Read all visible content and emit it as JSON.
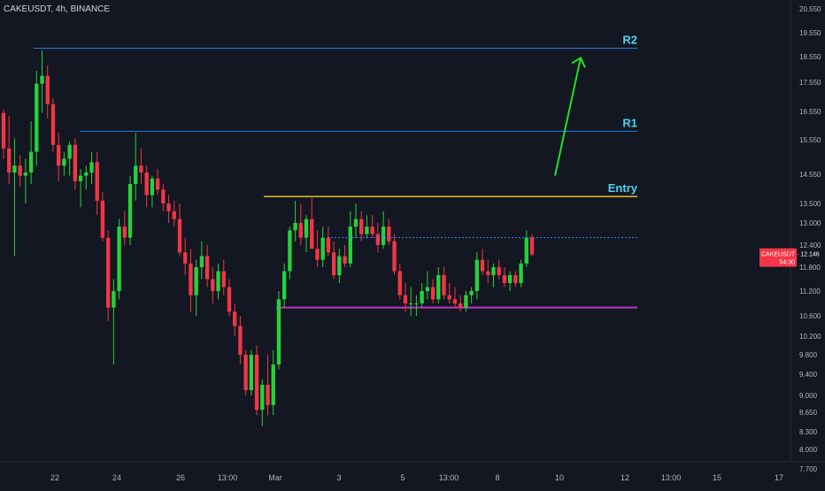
{
  "header": {
    "symbol": "CAKEUSDT",
    "interval": "4h",
    "exchange": "BINANCE"
  },
  "price_tag": {
    "symbol": "CAKEUSDT",
    "price": "12.146",
    "countdown": "54:30",
    "color": "#f23645"
  },
  "colors": {
    "background": "#131722",
    "up": "#26d23a",
    "down": "#f23645",
    "axis_text": "#b2b5be",
    "r_line": "#2e7bd6",
    "entry_line": "#e6c229",
    "support_line": "#c232c2",
    "arrow": "#22e024",
    "label_cyan": "#4fd4f0"
  },
  "chart_data": {
    "type": "candlestick",
    "y_ticks": [
      "20.550",
      "19.550",
      "18.550",
      "17.550",
      "16.550",
      "15.550",
      "14.550",
      "13.500",
      "13.000",
      "12.400",
      "11.800",
      "11.200",
      "10.600",
      "10.200",
      "9.800",
      "9.400",
      "9.000",
      "8.650",
      "8.300",
      "8.000",
      "7.700"
    ],
    "x_ticks": [
      "22",
      "24",
      "26",
      "13:00",
      "Mar",
      "3",
      "5",
      "13:00",
      "8",
      "10",
      "12",
      "13:00",
      "15",
      "17"
    ],
    "current_price": 12.146,
    "levels": [
      {
        "label": "R2",
        "value": 18.9
      },
      {
        "label": "R1",
        "value": 15.85
      },
      {
        "label": "Entry",
        "value": 13.75
      },
      {
        "label": "",
        "value": 10.8
      }
    ],
    "arrow": {
      "from_price": 14.5,
      "to_price": 18.5
    },
    "candles": [
      [
        16.5,
        16.6,
        15.0,
        15.3
      ],
      [
        15.3,
        16.4,
        14.2,
        14.6
      ],
      [
        14.6,
        15.6,
        12.1,
        14.8
      ],
      [
        14.8,
        15.1,
        14.1,
        14.5
      ],
      [
        14.5,
        15.0,
        13.5,
        14.6
      ],
      [
        14.6,
        16.2,
        14.2,
        15.2
      ],
      [
        15.2,
        18.0,
        14.8,
        17.5
      ],
      [
        17.5,
        18.8,
        16.5,
        17.8
      ],
      [
        17.8,
        18.2,
        16.3,
        16.8
      ],
      [
        16.8,
        17.0,
        15.2,
        15.4
      ],
      [
        15.4,
        15.8,
        14.3,
        14.8
      ],
      [
        14.8,
        15.2,
        14.5,
        15.0
      ],
      [
        15.0,
        15.5,
        14.5,
        15.4
      ],
      [
        15.4,
        15.6,
        14.0,
        14.3
      ],
      [
        14.3,
        14.7,
        13.4,
        14.5
      ],
      [
        14.5,
        14.8,
        14.0,
        14.6
      ],
      [
        14.6,
        15.2,
        14.2,
        14.9
      ],
      [
        14.9,
        15.2,
        13.2,
        13.6
      ],
      [
        13.6,
        13.9,
        12.5,
        12.6
      ],
      [
        12.6,
        12.8,
        10.5,
        10.8
      ],
      [
        10.8,
        11.5,
        9.6,
        11.2
      ],
      [
        11.2,
        13.1,
        11.0,
        12.9
      ],
      [
        12.9,
        13.3,
        12.4,
        12.6
      ],
      [
        12.6,
        14.5,
        12.4,
        14.2
      ],
      [
        14.2,
        15.8,
        13.6,
        14.8
      ],
      [
        14.8,
        15.3,
        14.2,
        14.6
      ],
      [
        14.6,
        14.8,
        13.4,
        13.8
      ],
      [
        13.8,
        14.5,
        13.4,
        14.4
      ],
      [
        14.4,
        14.7,
        13.8,
        14.0
      ],
      [
        14.0,
        14.2,
        13.3,
        13.5
      ],
      [
        13.5,
        13.8,
        13.0,
        13.3
      ],
      [
        13.3,
        13.6,
        12.9,
        13.1
      ],
      [
        13.1,
        13.5,
        12.1,
        12.2
      ],
      [
        12.2,
        12.6,
        11.6,
        11.9
      ],
      [
        11.9,
        12.3,
        10.7,
        11.1
      ],
      [
        11.1,
        12.0,
        10.6,
        11.8
      ],
      [
        11.8,
        12.5,
        11.5,
        12.1
      ],
      [
        12.1,
        12.4,
        11.3,
        11.5
      ],
      [
        11.5,
        11.8,
        10.9,
        11.2
      ],
      [
        11.2,
        11.9,
        11.0,
        11.7
      ],
      [
        11.7,
        12.0,
        11.1,
        11.3
      ],
      [
        11.3,
        11.5,
        10.6,
        10.7
      ],
      [
        10.7,
        10.9,
        10.2,
        10.4
      ],
      [
        10.4,
        10.6,
        9.6,
        9.8
      ],
      [
        9.8,
        9.9,
        9.0,
        9.1
      ],
      [
        9.1,
        9.9,
        9.0,
        9.8
      ],
      [
        9.8,
        10.0,
        8.6,
        8.7
      ],
      [
        8.7,
        9.3,
        8.4,
        9.2
      ],
      [
        9.2,
        9.8,
        8.6,
        8.8
      ],
      [
        8.8,
        9.9,
        8.6,
        9.6
      ],
      [
        9.6,
        11.2,
        9.5,
        11.0
      ],
      [
        11.0,
        11.9,
        10.8,
        11.7
      ],
      [
        11.7,
        12.9,
        11.5,
        12.8
      ],
      [
        12.8,
        13.6,
        12.5,
        13.0
      ],
      [
        13.0,
        13.5,
        12.4,
        12.6
      ],
      [
        12.6,
        13.2,
        12.2,
        13.1
      ],
      [
        13.1,
        13.7,
        12.3,
        12.3
      ],
      [
        12.3,
        12.8,
        11.8,
        12.0
      ],
      [
        12.0,
        12.9,
        11.8,
        12.6
      ],
      [
        12.6,
        12.9,
        12.1,
        12.2
      ],
      [
        12.2,
        12.5,
        11.5,
        11.6
      ],
      [
        11.6,
        12.3,
        11.4,
        12.1
      ],
      [
        12.1,
        12.4,
        11.8,
        11.9
      ],
      [
        11.9,
        13.3,
        11.8,
        12.9
      ],
      [
        12.9,
        13.5,
        12.6,
        13.1
      ],
      [
        13.1,
        13.3,
        12.5,
        12.7
      ],
      [
        12.7,
        13.2,
        12.6,
        12.9
      ],
      [
        12.9,
        13.2,
        12.6,
        12.7
      ],
      [
        12.7,
        13.0,
        12.2,
        12.4
      ],
      [
        12.4,
        13.3,
        12.3,
        12.9
      ],
      [
        12.9,
        13.1,
        12.4,
        12.5
      ],
      [
        12.5,
        12.7,
        11.6,
        11.7
      ],
      [
        11.7,
        11.9,
        11.0,
        11.1
      ],
      [
        11.1,
        11.4,
        10.7,
        10.9
      ],
      [
        10.9,
        11.3,
        10.6,
        10.9
      ],
      [
        10.9,
        11.1,
        10.6,
        10.9
      ],
      [
        10.9,
        11.4,
        10.8,
        11.2
      ],
      [
        11.2,
        11.7,
        11.0,
        11.3
      ],
      [
        11.3,
        11.5,
        10.9,
        11.0
      ],
      [
        11.0,
        11.8,
        10.9,
        11.6
      ],
      [
        11.6,
        11.8,
        11.0,
        11.1
      ],
      [
        11.1,
        11.4,
        10.9,
        11.0
      ],
      [
        11.0,
        11.3,
        10.8,
        10.9
      ],
      [
        10.9,
        11.1,
        10.7,
        10.8
      ],
      [
        10.8,
        11.2,
        10.7,
        11.1
      ],
      [
        11.1,
        11.3,
        10.9,
        11.2
      ],
      [
        11.2,
        12.2,
        11.0,
        12.0
      ],
      [
        12.0,
        12.3,
        11.6,
        11.7
      ],
      [
        11.7,
        12.0,
        11.4,
        11.6
      ],
      [
        11.6,
        11.9,
        11.3,
        11.8
      ],
      [
        11.8,
        12.0,
        11.5,
        11.6
      ],
      [
        11.6,
        11.8,
        11.3,
        11.4
      ],
      [
        11.4,
        11.7,
        11.2,
        11.6
      ],
      [
        11.6,
        11.7,
        11.3,
        11.4
      ],
      [
        11.4,
        12.0,
        11.3,
        11.9
      ],
      [
        11.9,
        12.8,
        11.8,
        12.6
      ],
      [
        12.6,
        12.7,
        12.1,
        12.146
      ]
    ]
  }
}
